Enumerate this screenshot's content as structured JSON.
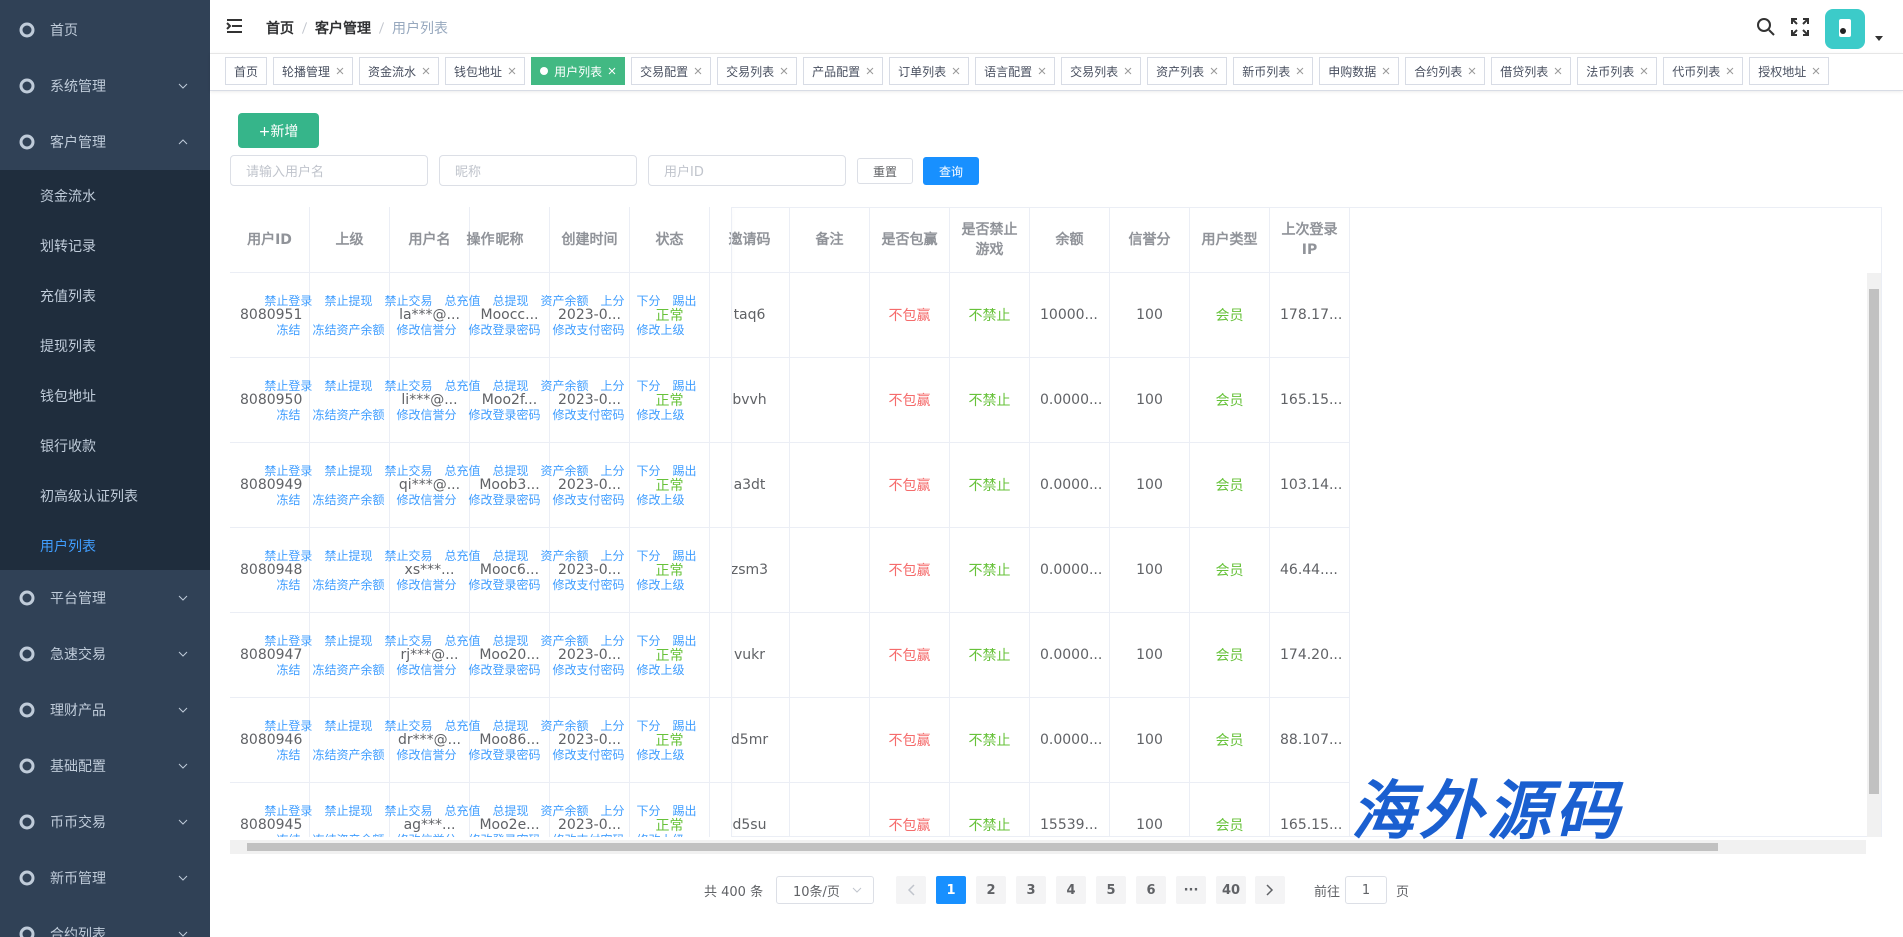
{
  "sidebar": {
    "items": [
      {
        "label": "首页"
      },
      {
        "label": "系统管理"
      },
      {
        "label": "客户管理",
        "children": [
          "资金流水",
          "划转记录",
          "充值列表",
          "提现列表",
          "钱包地址",
          "银行收款",
          "初高级认证列表",
          "用户列表"
        ]
      },
      {
        "label": "平台管理"
      },
      {
        "label": "急速交易"
      },
      {
        "label": "理财产品"
      },
      {
        "label": "基础配置"
      },
      {
        "label": "币币交易"
      },
      {
        "label": "新币管理"
      },
      {
        "label": "合约列表"
      }
    ]
  },
  "header": {
    "breadcrumb": [
      "首页",
      "客户管理",
      "用户列表"
    ]
  },
  "tabs": [
    "首页",
    "轮播管理",
    "资金流水",
    "钱包地址",
    "用户列表",
    "交易配置",
    "交易列表",
    "产品配置",
    "订单列表",
    "语言配置",
    "交易列表",
    "资产列表",
    "新币列表",
    "申购数据",
    "合约列表",
    "借贷列表",
    "法币列表",
    "代币列表",
    "授权地址"
  ],
  "toolbar": {
    "add_button": "+新增",
    "search_placeholders": [
      "请输入用户名",
      "昵称",
      "用户ID"
    ],
    "reset": "重置",
    "query": "查询"
  },
  "table": {
    "columns": [
      "用户ID",
      "上级",
      "用户名",
      "昵称",
      "创建时间",
      "状态",
      "邀请码",
      "备注",
      "是否包赢",
      "是否禁止游戏",
      "余额",
      "信誉分",
      "用户类型",
      "上次登录IP"
    ],
    "action_column": "操作",
    "rows": [
      [
        "8080951",
        null,
        "la***@...",
        "Moocc...",
        "2023-0...",
        "正常",
        "taq6",
        null,
        "不包赢",
        "不禁止",
        "10000...",
        "100",
        "会员",
        "178.17..."
      ],
      [
        "8080950",
        null,
        "li***@...",
        "Moo2f...",
        "2023-0...",
        "正常",
        "bvvh",
        null,
        "不包赢",
        "不禁止",
        "0.0000...",
        "100",
        "会员",
        "165.15..."
      ],
      [
        "8080949",
        null,
        "qi***@...",
        "Moob3...",
        "2023-0...",
        "正常",
        "a3dt",
        null,
        "不包赢",
        "不禁止",
        "0.0000...",
        "100",
        "会员",
        "103.14..."
      ],
      [
        "8080948",
        null,
        "xs***...",
        "Mooc6...",
        "2023-0...",
        "正常",
        "zsm3",
        null,
        "不包赢",
        "不禁止",
        "0.0000...",
        "100",
        "会员",
        "46.44...."
      ],
      [
        "8080947",
        null,
        "rj***@...",
        "Moo20...",
        "2023-0...",
        "正常",
        "vukr",
        null,
        "不包赢",
        "不禁止",
        "0.0000...",
        "100",
        "会员",
        "174.20..."
      ],
      [
        "8080946",
        null,
        "dr***@...",
        "Moo86...",
        "2023-0...",
        "正常",
        "d5mr",
        null,
        "不包赢",
        "不禁止",
        "0.0000...",
        "100",
        "会员",
        "88.107..."
      ],
      [
        "8080945",
        null,
        "ag***...",
        "Moo2e...",
        "2023-0...",
        "正常",
        "d5su",
        null,
        "不包赢",
        "不禁止",
        "15539...",
        "100",
        "会员",
        "165.15..."
      ]
    ],
    "actions": [
      [
        "禁止登录",
        "禁止提现",
        "禁止交易",
        "总充值",
        "总提现",
        "资产余额",
        "上分",
        "下分",
        "踢出"
      ],
      [
        "冻结",
        "冻结资产余额",
        "修改信誉分",
        "修改登录密码",
        "修改支付密码",
        "修改上级"
      ]
    ]
  },
  "pagination": {
    "total": "共 400 条",
    "page_size": "10条/页",
    "pages": [
      "1",
      "2",
      "3",
      "4",
      "5",
      "6",
      "···",
      "40"
    ],
    "goto": "前往",
    "goto_value": "1",
    "unit": "页"
  },
  "watermark": "海外源码"
}
